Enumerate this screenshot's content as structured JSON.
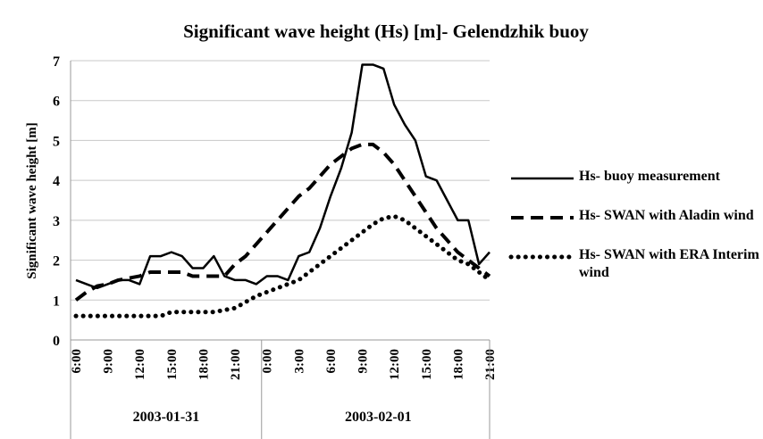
{
  "chart_data": {
    "type": "line",
    "title": "Significant wave height (Hs) [m]- Gelendzhik buoy",
    "y_label": "Significant wave height [m]",
    "categories": [
      "6:00",
      null,
      null,
      "9:00",
      null,
      null,
      "12:00",
      null,
      null,
      "15:00",
      null,
      null,
      "18:00",
      null,
      null,
      "21:00",
      null,
      null,
      "0:00",
      null,
      null,
      "3:00",
      null,
      null,
      "6:00",
      null,
      null,
      "9:00",
      null,
      null,
      "12:00",
      null,
      null,
      "15:00",
      null,
      null,
      "18:00",
      null,
      null,
      "21:00"
    ],
    "x_groups": [
      {
        "label": "2003-01-31",
        "count": 18
      },
      {
        "label": "2003-02-01",
        "count": 22
      }
    ],
    "series": [
      {
        "name": "Hs- buoy measurement",
        "color": "#000000",
        "style": "solid",
        "values": [
          1.5,
          1.4,
          1.3,
          1.4,
          1.5,
          1.5,
          1.4,
          2.1,
          2.1,
          2.2,
          2.1,
          1.8,
          1.8,
          2.1,
          1.6,
          1.5,
          1.5,
          1.4,
          1.6,
          1.6,
          1.5,
          2.1,
          2.2,
          2.8,
          3.6,
          4.3,
          5.2,
          6.9,
          6.9,
          6.8,
          5.9,
          5.4,
          5.0,
          4.1,
          4.0,
          3.5,
          3.0,
          3.0,
          1.9,
          2.2
        ]
      },
      {
        "name": "Hs- SWAN with Aladin wind",
        "color": "#000000",
        "style": "dashed",
        "values": [
          1.0,
          1.2,
          1.35,
          1.4,
          1.5,
          1.55,
          1.6,
          1.7,
          1.7,
          1.7,
          1.7,
          1.6,
          1.6,
          1.6,
          1.6,
          1.9,
          2.1,
          2.4,
          2.7,
          3.0,
          3.3,
          3.6,
          3.8,
          4.1,
          4.4,
          4.6,
          4.8,
          4.9,
          4.9,
          4.7,
          4.4,
          4.0,
          3.6,
          3.2,
          2.8,
          2.5,
          2.2,
          2.0,
          1.8,
          1.6
        ]
      },
      {
        "name": "Hs- SWAN with ERA Interim wind",
        "color": "#000000",
        "style": "dotted",
        "values": [
          0.6,
          0.6,
          0.6,
          0.6,
          0.6,
          0.6,
          0.6,
          0.6,
          0.6,
          0.7,
          0.7,
          0.7,
          0.7,
          0.7,
          0.75,
          0.8,
          0.95,
          1.1,
          1.2,
          1.3,
          1.4,
          1.5,
          1.7,
          1.9,
          2.1,
          2.3,
          2.5,
          2.7,
          2.9,
          3.05,
          3.1,
          3.0,
          2.8,
          2.6,
          2.4,
          2.2,
          2.0,
          1.9,
          1.7,
          1.5
        ]
      }
    ],
    "ylim": [
      0,
      7
    ],
    "yticks": [
      0,
      1,
      2,
      3,
      4,
      5,
      6,
      7
    ],
    "grid": true,
    "legend": "right"
  }
}
